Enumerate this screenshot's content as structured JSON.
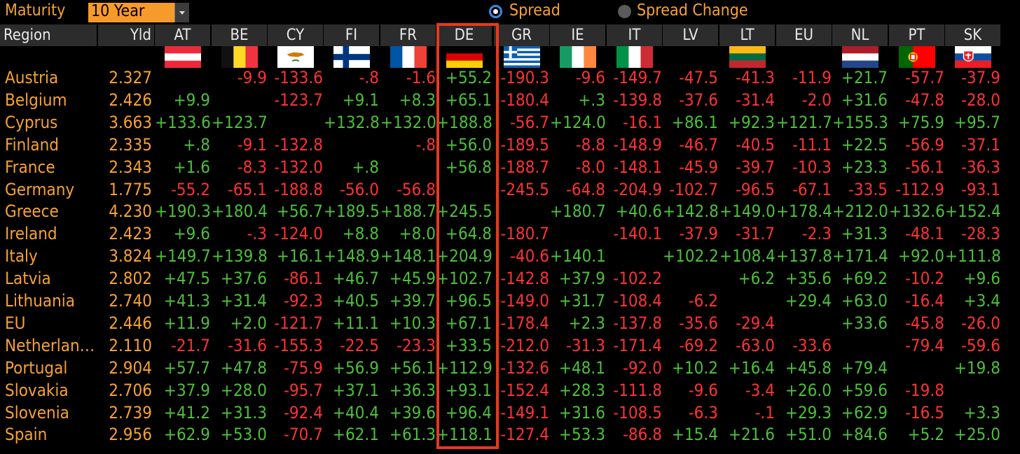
{
  "toolbar": {
    "maturity_label": "Maturity",
    "maturity_value": "10 Year",
    "radio_spread_label": "Spread",
    "radio_change_label": "Spread Change",
    "selected": "Spread"
  },
  "columns": {
    "region": "Region",
    "yld": "Yld",
    "countries": [
      "AT",
      "BE",
      "CY",
      "FI",
      "FR",
      "DE",
      "GR",
      "IE",
      "IT",
      "LV",
      "LT",
      "EU",
      "NL",
      "PT",
      "SK"
    ]
  },
  "flags": [
    {
      "code": "AT",
      "icon": "austria-flag-icon",
      "present": true
    },
    {
      "code": "BE",
      "icon": "belgium-flag-icon",
      "present": true
    },
    {
      "code": "CY",
      "icon": "cyprus-flag-icon",
      "present": true
    },
    {
      "code": "FI",
      "icon": "finland-flag-icon",
      "present": true
    },
    {
      "code": "FR",
      "icon": "france-flag-icon",
      "present": true
    },
    {
      "code": "DE",
      "icon": "germany-flag-icon",
      "present": true
    },
    {
      "code": "GR",
      "icon": "greece-flag-icon",
      "present": true
    },
    {
      "code": "IE",
      "icon": "ireland-flag-icon",
      "present": true
    },
    {
      "code": "IT",
      "icon": "italy-flag-icon",
      "present": true
    },
    {
      "code": "LV",
      "icon": "",
      "present": false
    },
    {
      "code": "LT",
      "icon": "lithuania-flag-icon",
      "present": true
    },
    {
      "code": "EU",
      "icon": "",
      "present": false
    },
    {
      "code": "NL",
      "icon": "netherlands-flag-icon",
      "present": true
    },
    {
      "code": "PT",
      "icon": "portugal-flag-icon",
      "present": true
    },
    {
      "code": "SK",
      "icon": "slovakia-flag-icon",
      "present": true
    }
  ],
  "colors": {
    "positive": "#4dbf3a",
    "negative": "#ff3232",
    "label": "#f7a133",
    "highlight": "#e8381f"
  },
  "rows": [
    {
      "region": "Austria",
      "yld": "2.327",
      "values": [
        "",
        "-9.9",
        "-133.6",
        "-.8",
        "-1.6",
        "+55.2",
        "-190.3",
        "-9.6",
        "-149.7",
        "-47.5",
        "-41.3",
        "-11.9",
        "+21.7",
        "-57.7",
        "-37.9"
      ]
    },
    {
      "region": "Belgium",
      "yld": "2.426",
      "values": [
        "+9.9",
        "",
        "-123.7",
        "+9.1",
        "+8.3",
        "+65.1",
        "-180.4",
        "+.3",
        "-139.8",
        "-37.6",
        "-31.4",
        "-2.0",
        "+31.6",
        "-47.8",
        "-28.0"
      ]
    },
    {
      "region": "Cyprus",
      "yld": "3.663",
      "values": [
        "+133.6",
        "+123.7",
        "",
        "+132.8",
        "+132.0",
        "+188.8",
        "-56.7",
        "+124.0",
        "-16.1",
        "+86.1",
        "+92.3",
        "+121.7",
        "+155.3",
        "+75.9",
        "+95.7"
      ]
    },
    {
      "region": "Finland",
      "yld": "2.335",
      "values": [
        "+.8",
        "-9.1",
        "-132.8",
        "",
        "-.8",
        "+56.0",
        "-189.5",
        "-8.8",
        "-148.9",
        "-46.7",
        "-40.5",
        "-11.1",
        "+22.5",
        "-56.9",
        "-37.1"
      ]
    },
    {
      "region": "France",
      "yld": "2.343",
      "values": [
        "+1.6",
        "-8.3",
        "-132.0",
        "+.8",
        "",
        "+56.8",
        "-188.7",
        "-8.0",
        "-148.1",
        "-45.9",
        "-39.7",
        "-10.3",
        "+23.3",
        "-56.1",
        "-36.3"
      ]
    },
    {
      "region": "Germany",
      "yld": "1.775",
      "values": [
        "-55.2",
        "-65.1",
        "-188.8",
        "-56.0",
        "-56.8",
        "",
        "-245.5",
        "-64.8",
        "-204.9",
        "-102.7",
        "-96.5",
        "-67.1",
        "-33.5",
        "-112.9",
        "-93.1"
      ]
    },
    {
      "region": "Greece",
      "yld": "4.230",
      "values": [
        "+190.3",
        "+180.4",
        "+56.7",
        "+189.5",
        "+188.7",
        "+245.5",
        "",
        "+180.7",
        "+40.6",
        "+142.8",
        "+149.0",
        "+178.4",
        "+212.0",
        "+132.6",
        "+152.4"
      ]
    },
    {
      "region": "Ireland",
      "yld": "2.423",
      "values": [
        "+9.6",
        "-.3",
        "-124.0",
        "+8.8",
        "+8.0",
        "+64.8",
        "-180.7",
        "",
        "-140.1",
        "-37.9",
        "-31.7",
        "-2.3",
        "+31.3",
        "-48.1",
        "-28.3"
      ]
    },
    {
      "region": "Italy",
      "yld": "3.824",
      "values": [
        "+149.7",
        "+139.8",
        "+16.1",
        "+148.9",
        "+148.1",
        "+204.9",
        "-40.6",
        "+140.1",
        "",
        "+102.2",
        "+108.4",
        "+137.8",
        "+171.4",
        "+92.0",
        "+111.8"
      ]
    },
    {
      "region": "Latvia",
      "yld": "2.802",
      "values": [
        "+47.5",
        "+37.6",
        "-86.1",
        "+46.7",
        "+45.9",
        "+102.7",
        "-142.8",
        "+37.9",
        "-102.2",
        "",
        "+6.2",
        "+35.6",
        "+69.2",
        "-10.2",
        "+9.6"
      ]
    },
    {
      "region": "Lithuania",
      "yld": "2.740",
      "values": [
        "+41.3",
        "+31.4",
        "-92.3",
        "+40.5",
        "+39.7",
        "+96.5",
        "-149.0",
        "+31.7",
        "-108.4",
        "-6.2",
        "",
        "+29.4",
        "+63.0",
        "-16.4",
        "+3.4"
      ]
    },
    {
      "region": "EU",
      "yld": "2.446",
      "values": [
        "+11.9",
        "+2.0",
        "-121.7",
        "+11.1",
        "+10.3",
        "+67.1",
        "-178.4",
        "+2.3",
        "-137.8",
        "-35.6",
        "-29.4",
        "",
        "+33.6",
        "-45.8",
        "-26.0"
      ]
    },
    {
      "region": "Netherlan…",
      "yld": "2.110",
      "values": [
        "-21.7",
        "-31.6",
        "-155.3",
        "-22.5",
        "-23.3",
        "+33.5",
        "-212.0",
        "-31.3",
        "-171.4",
        "-69.2",
        "-63.0",
        "-33.6",
        "",
        "-79.4",
        "-59.6"
      ]
    },
    {
      "region": "Portugal",
      "yld": "2.904",
      "values": [
        "+57.7",
        "+47.8",
        "-75.9",
        "+56.9",
        "+56.1",
        "+112.9",
        "-132.6",
        "+48.1",
        "-92.0",
        "+10.2",
        "+16.4",
        "+45.8",
        "+79.4",
        "",
        "+19.8"
      ]
    },
    {
      "region": "Slovakia",
      "yld": "2.706",
      "values": [
        "+37.9",
        "+28.0",
        "-95.7",
        "+37.1",
        "+36.3",
        "+93.1",
        "-152.4",
        "+28.3",
        "-111.8",
        "-9.6",
        "-3.4",
        "+26.0",
        "+59.6",
        "-19.8",
        ""
      ]
    },
    {
      "region": "Slovenia",
      "yld": "2.739",
      "values": [
        "+41.2",
        "+31.3",
        "-92.4",
        "+40.4",
        "+39.6",
        "+96.4",
        "-149.1",
        "+31.6",
        "-108.5",
        "-6.3",
        "-.1",
        "+29.3",
        "+62.9",
        "-16.5",
        "+3.3"
      ]
    },
    {
      "region": "Spain",
      "yld": "2.956",
      "values": [
        "+62.9",
        "+53.0",
        "-70.7",
        "+62.1",
        "+61.3",
        "+118.1",
        "-127.4",
        "+53.3",
        "-86.8",
        "+15.4",
        "+21.6",
        "+51.0",
        "+84.6",
        "+5.2",
        "+25.0"
      ]
    }
  ]
}
